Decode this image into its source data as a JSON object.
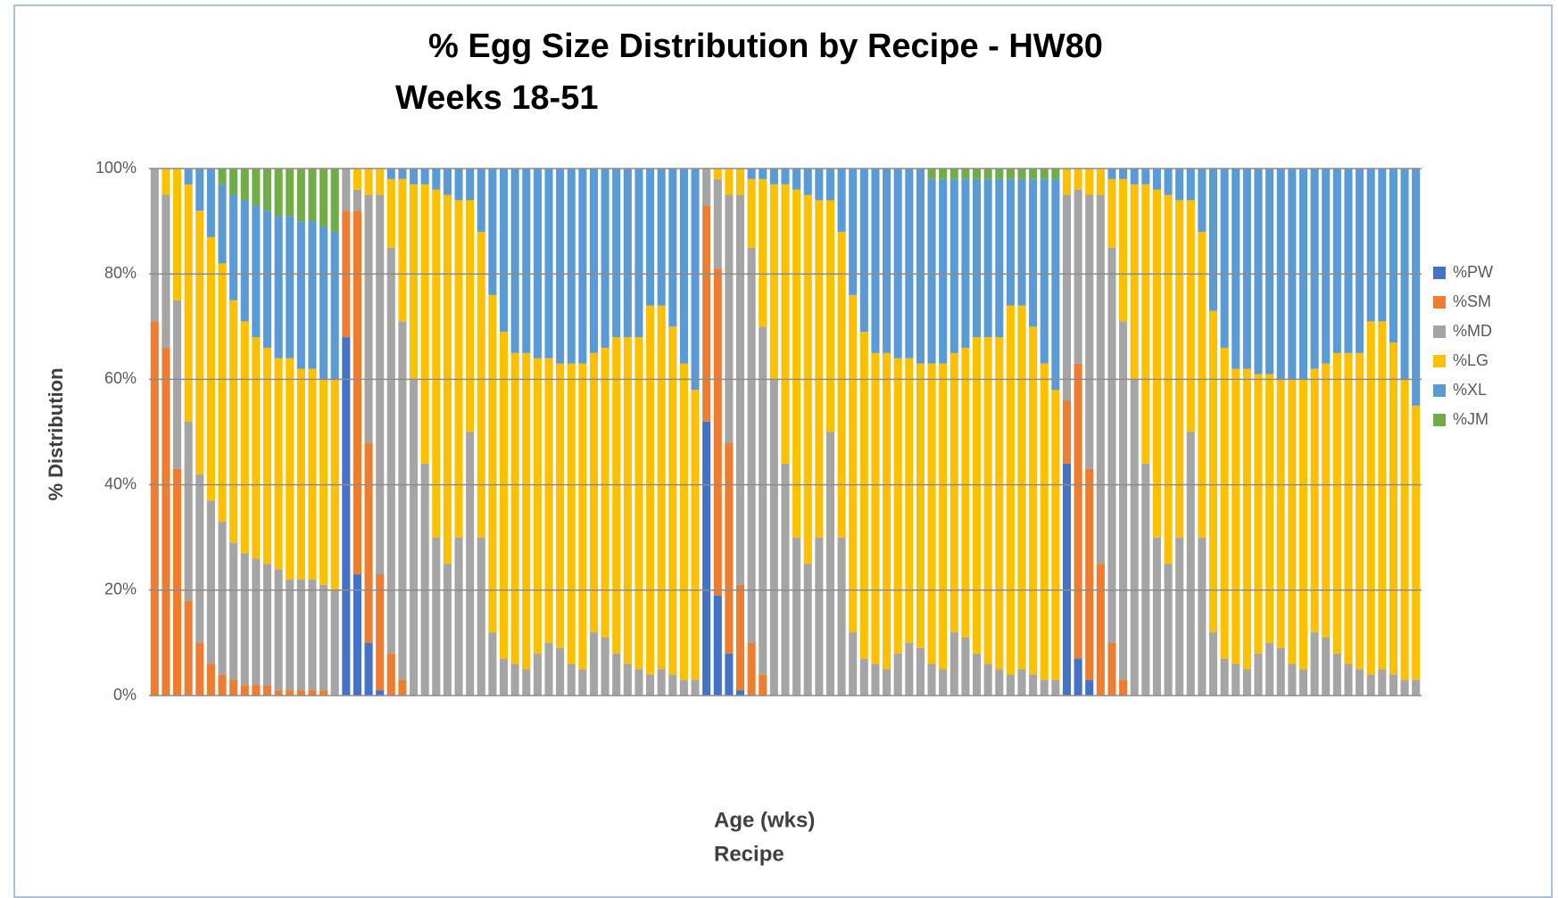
{
  "chart_data": {
    "type": "stacked_bar_100",
    "title": "% Egg Size Distribution by Recipe - HW80",
    "subtitle": "Weeks 18-51",
    "y_label": "% Distribution",
    "x_label": "Age (wks)",
    "x_label_2": "Recipe",
    "ylim": [
      0,
      100
    ],
    "yticks": [
      {
        "value": 0,
        "label": "0%"
      },
      {
        "value": 20,
        "label": "20%"
      },
      {
        "value": 40,
        "label": "40%"
      },
      {
        "value": 60,
        "label": "60%"
      },
      {
        "value": 80,
        "label": "80%"
      },
      {
        "value": 100,
        "label": "100%"
      }
    ],
    "grid": true,
    "legend": "right",
    "categories": [
      null,
      null,
      null,
      null,
      null,
      null,
      null,
      null,
      null,
      null,
      null,
      null,
      null,
      null,
      null,
      null,
      null,
      null,
      null,
      null,
      null,
      null,
      null,
      null,
      null,
      null,
      null,
      null,
      null,
      null,
      null,
      null,
      null,
      null,
      null,
      null,
      null,
      null,
      null,
      null,
      null,
      null,
      null,
      null,
      null,
      null,
      null,
      null,
      null,
      null,
      null,
      null,
      null,
      null,
      null,
      null,
      null,
      null,
      null,
      null,
      null,
      null,
      null,
      null,
      null,
      null,
      null,
      null,
      null,
      null,
      null,
      null,
      null,
      null,
      null,
      null,
      null,
      null,
      null,
      null,
      null,
      null,
      null,
      null,
      null,
      null,
      null,
      null,
      null,
      null,
      null,
      null,
      null,
      null,
      null,
      null,
      null,
      null,
      null,
      null,
      null,
      null,
      null,
      null,
      null,
      null,
      null,
      null,
      null,
      null,
      null,
      null,
      null
    ],
    "series": [
      {
        "name": "%PW",
        "color": "#4472c4",
        "values": [
          0,
          0,
          0,
          0,
          0,
          0,
          0,
          0,
          0,
          0,
          0,
          0,
          0,
          0,
          0,
          0,
          0,
          68,
          23,
          10,
          1,
          0,
          0,
          0,
          0,
          0,
          0,
          0,
          0,
          0,
          0,
          0,
          0,
          0,
          0,
          0,
          0,
          0,
          0,
          0,
          0,
          0,
          0,
          0,
          0,
          0,
          0,
          0,
          0,
          52,
          19,
          8,
          1,
          0,
          0,
          0,
          0,
          0,
          0,
          0,
          0,
          0,
          0,
          0,
          0,
          0,
          0,
          0,
          0,
          0,
          0,
          0,
          0,
          0,
          0,
          0,
          0,
          0,
          0,
          0,
          0,
          44,
          7,
          3,
          0,
          0,
          0,
          0,
          0,
          0,
          0,
          0,
          0,
          0,
          0,
          0,
          0,
          0,
          0,
          0,
          0,
          0,
          0,
          0,
          0,
          0,
          0,
          0,
          0,
          0,
          0,
          0,
          0
        ]
      },
      {
        "name": "%SM",
        "color": "#ed7d31",
        "values": [
          71,
          66,
          43,
          18,
          10,
          6,
          4,
          3,
          2,
          2,
          2,
          1,
          1,
          1,
          1,
          1,
          0,
          24,
          69,
          38,
          22,
          8,
          3,
          0,
          0,
          0,
          0,
          0,
          0,
          0,
          0,
          0,
          0,
          0,
          0,
          0,
          0,
          0,
          0,
          0,
          0,
          0,
          0,
          0,
          0,
          0,
          0,
          0,
          0,
          41,
          62,
          40,
          20,
          10,
          4,
          0,
          0,
          0,
          0,
          0,
          0,
          0,
          0,
          0,
          0,
          0,
          0,
          0,
          0,
          0,
          0,
          0,
          0,
          0,
          0,
          0,
          0,
          0,
          0,
          0,
          0,
          12,
          56,
          40,
          25,
          10,
          3,
          0,
          0,
          0,
          0,
          0,
          0,
          0,
          0,
          0,
          0,
          0,
          0,
          0,
          0,
          0,
          0,
          0,
          0,
          0,
          0,
          0,
          0,
          0,
          0,
          0,
          0
        ]
      },
      {
        "name": "%MD",
        "color": "#a5a5a5",
        "values": [
          29,
          29,
          32,
          34,
          32,
          31,
          29,
          26,
          25,
          24,
          23,
          23,
          21,
          21,
          21,
          20,
          20,
          8,
          4,
          47,
          72,
          77,
          68,
          60,
          44,
          30,
          25,
          30,
          50,
          30,
          12,
          7,
          6,
          5,
          8,
          10,
          9,
          6,
          5,
          12,
          11,
          8,
          6,
          5,
          4,
          5,
          4,
          3,
          3,
          7,
          17,
          47,
          74,
          75,
          66,
          60,
          44,
          30,
          25,
          30,
          50,
          30,
          12,
          7,
          6,
          5,
          8,
          10,
          9,
          6,
          5,
          12,
          11,
          8,
          6,
          5,
          4,
          5,
          4,
          3,
          3,
          39,
          33,
          52,
          70,
          75,
          68,
          60,
          44,
          30,
          25,
          30,
          50,
          30,
          12,
          7,
          6,
          5,
          8,
          10,
          9,
          6,
          5,
          12,
          11,
          8,
          6,
          5,
          4,
          5,
          4,
          3,
          3
        ]
      },
      {
        "name": "%LG",
        "color": "#ffc000",
        "values": [
          0,
          5,
          25,
          45,
          50,
          50,
          49,
          46,
          44,
          42,
          41,
          40,
          42,
          40,
          40,
          39,
          40,
          0,
          4,
          5,
          5,
          13,
          27,
          37,
          53,
          66,
          70,
          64,
          44,
          58,
          64,
          62,
          59,
          60,
          56,
          54,
          54,
          57,
          58,
          53,
          55,
          60,
          62,
          63,
          70,
          69,
          66,
          60,
          55,
          0,
          2,
          5,
          5,
          13,
          28,
          37,
          53,
          66,
          70,
          64,
          44,
          58,
          64,
          62,
          59,
          60,
          56,
          54,
          54,
          57,
          58,
          53,
          55,
          60,
          62,
          63,
          70,
          69,
          66,
          60,
          55,
          5,
          4,
          5,
          5,
          13,
          27,
          37,
          53,
          66,
          70,
          64,
          44,
          58,
          61,
          59,
          56,
          57,
          53,
          51,
          51,
          54,
          55,
          50,
          52,
          57,
          59,
          60,
          67,
          66,
          63,
          57,
          52
        ]
      },
      {
        "name": "%XL",
        "color": "#5b9bd5",
        "values": [
          0,
          0,
          0,
          3,
          8,
          13,
          15,
          20,
          23,
          25,
          26,
          27,
          27,
          28,
          28,
          29,
          28,
          0,
          0,
          0,
          0,
          2,
          2,
          3,
          3,
          4,
          5,
          6,
          6,
          12,
          24,
          31,
          35,
          35,
          36,
          36,
          37,
          37,
          37,
          35,
          34,
          32,
          32,
          32,
          26,
          26,
          30,
          37,
          42,
          0,
          0,
          0,
          0,
          2,
          2,
          3,
          3,
          4,
          5,
          6,
          6,
          12,
          24,
          31,
          35,
          35,
          36,
          36,
          37,
          35,
          35,
          33,
          32,
          30,
          30,
          30,
          24,
          24,
          28,
          35,
          40,
          0,
          0,
          0,
          0,
          2,
          2,
          3,
          3,
          4,
          5,
          6,
          6,
          12,
          27,
          34,
          38,
          38,
          39,
          39,
          40,
          40,
          40,
          38,
          37,
          35,
          35,
          35,
          29,
          29,
          33,
          40,
          45
        ]
      },
      {
        "name": "%JM",
        "color": "#70ad47",
        "values": [
          0,
          0,
          0,
          0,
          0,
          0,
          3,
          5,
          6,
          7,
          8,
          9,
          9,
          10,
          10,
          11,
          12,
          0,
          0,
          0,
          0,
          0,
          0,
          0,
          0,
          0,
          0,
          0,
          0,
          0,
          0,
          0,
          0,
          0,
          0,
          0,
          0,
          0,
          0,
          0,
          0,
          0,
          0,
          0,
          0,
          0,
          0,
          0,
          0,
          0,
          0,
          0,
          0,
          0,
          0,
          0,
          0,
          0,
          0,
          0,
          0,
          0,
          0,
          0,
          0,
          0,
          0,
          0,
          0,
          2,
          2,
          2,
          2,
          2,
          2,
          2,
          2,
          2,
          2,
          2,
          2,
          0,
          0,
          0,
          0,
          0,
          0,
          0,
          0,
          0,
          0,
          0,
          0,
          0,
          0,
          0,
          0,
          0,
          0,
          0,
          0,
          0,
          0,
          0,
          0,
          0,
          0,
          0,
          0,
          0,
          0,
          0,
          0
        ]
      }
    ]
  }
}
